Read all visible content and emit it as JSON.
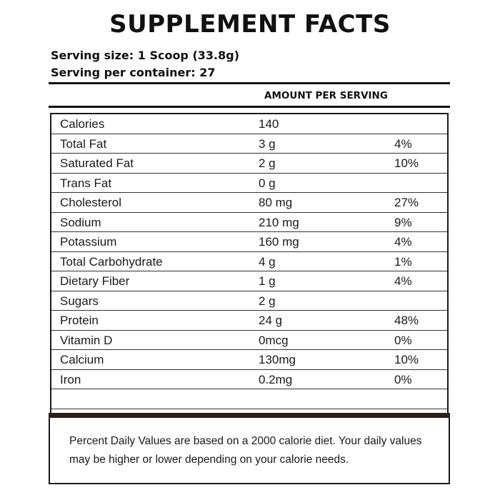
{
  "header": {
    "title": "SUPPLEMENT FACTS",
    "serving_size": "Serving size: 1 Scoop (33.8g)",
    "servings_per_container": "Serving per container: 27",
    "amount_header": "AMOUNT PER SERVING"
  },
  "rows": [
    {
      "nutrient": "Calories",
      "amount": "140",
      "dv": ""
    },
    {
      "nutrient": "Total Fat",
      "amount": "3 g",
      "dv": "4%"
    },
    {
      "nutrient": "Saturated Fat",
      "amount": "2 g",
      "dv": "10%"
    },
    {
      "nutrient": "Trans Fat",
      "amount": "0 g",
      "dv": ""
    },
    {
      "nutrient": "Cholesterol",
      "amount": "80 mg",
      "dv": "27%"
    },
    {
      "nutrient": "Sodium",
      "amount": "210 mg",
      "dv": "9%"
    },
    {
      "nutrient": "Potassium",
      "amount": "160 mg",
      "dv": "4%"
    },
    {
      "nutrient": "Total Carbohydrate",
      "amount": "4 g",
      "dv": "1%"
    },
    {
      "nutrient": "Dietary Fiber",
      "amount": "1 g",
      "dv": "4%"
    },
    {
      "nutrient": "Sugars",
      "amount": "2 g",
      "dv": ""
    },
    {
      "nutrient": "Protein",
      "amount": "24 g",
      "dv": "48%"
    },
    {
      "nutrient": "Vitamin D",
      "amount": "0mcg",
      "dv": "0%"
    },
    {
      "nutrient": "Calcium",
      "amount": "130mg",
      "dv": "10%"
    },
    {
      "nutrient": "Iron",
      "amount": "0.2mg",
      "dv": "0%"
    },
    {
      "nutrient": "",
      "amount": "",
      "dv": ""
    }
  ],
  "footer": {
    "note": "Percent Daily Values are based on a 2000 calorie diet. Your daily values may be higher or lower depending on your calorie needs."
  }
}
